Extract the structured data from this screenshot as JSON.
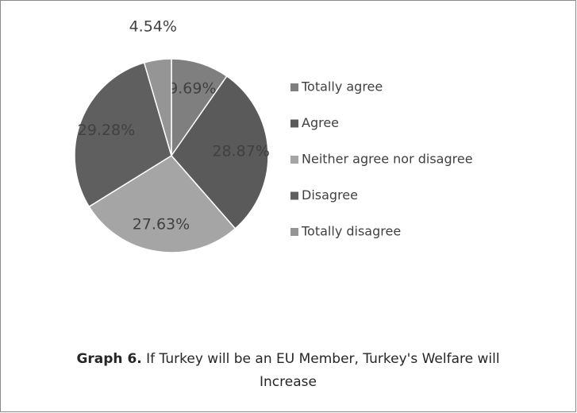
{
  "chart_data": {
    "type": "pie",
    "title_label": "Graph 6.",
    "title": "If Turkey will be an EU Member, Turkey's Welfare will Increase",
    "categories": [
      "Totally agree",
      "Agree",
      "Neither agree nor disagree",
      "Disagree",
      "Totally disagree"
    ],
    "values": [
      9.69,
      28.87,
      27.63,
      29.28,
      4.54
    ],
    "value_labels": [
      "9.69%",
      "28.87%",
      "27.63%",
      "29.28%",
      "4.54%"
    ],
    "colors": [
      "#7f7f7f",
      "#5a5a5a",
      "#a5a5a5",
      "#5f5f5f",
      "#959595"
    ],
    "legend": "right"
  }
}
